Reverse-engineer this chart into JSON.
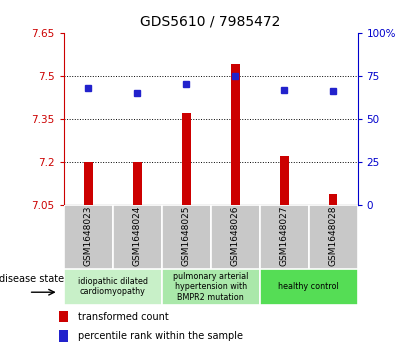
{
  "title": "GDS5610 / 7985472",
  "samples": [
    "GSM1648023",
    "GSM1648024",
    "GSM1648025",
    "GSM1648026",
    "GSM1648027",
    "GSM1648028"
  ],
  "bar_values": [
    7.2,
    7.2,
    7.37,
    7.54,
    7.22,
    7.09
  ],
  "percentile_values": [
    68,
    65,
    70,
    75,
    67,
    66
  ],
  "ymin": 7.05,
  "ymax": 7.65,
  "yticks": [
    7.05,
    7.2,
    7.35,
    7.5,
    7.65
  ],
  "right_yticks": [
    0,
    25,
    50,
    75,
    100
  ],
  "bar_color": "#cc0000",
  "dot_color": "#2222cc",
  "groups": [
    {
      "label": "idiopathic dilated\ncardiomyopathy",
      "col_indices": [
        0,
        1
      ],
      "color": "#c8f0c8"
    },
    {
      "label": "pulmonary arterial\nhypertension with\nBMPR2 mutation",
      "col_indices": [
        2,
        3
      ],
      "color": "#aae8aa"
    },
    {
      "label": "healthy control",
      "col_indices": [
        4,
        5
      ],
      "color": "#55dd55"
    }
  ],
  "disease_state_label": "disease state",
  "legend_bar_label": "transformed count",
  "legend_dot_label": "percentile rank within the sample",
  "label_bg": "#c8c8c8",
  "bar_width": 0.18
}
